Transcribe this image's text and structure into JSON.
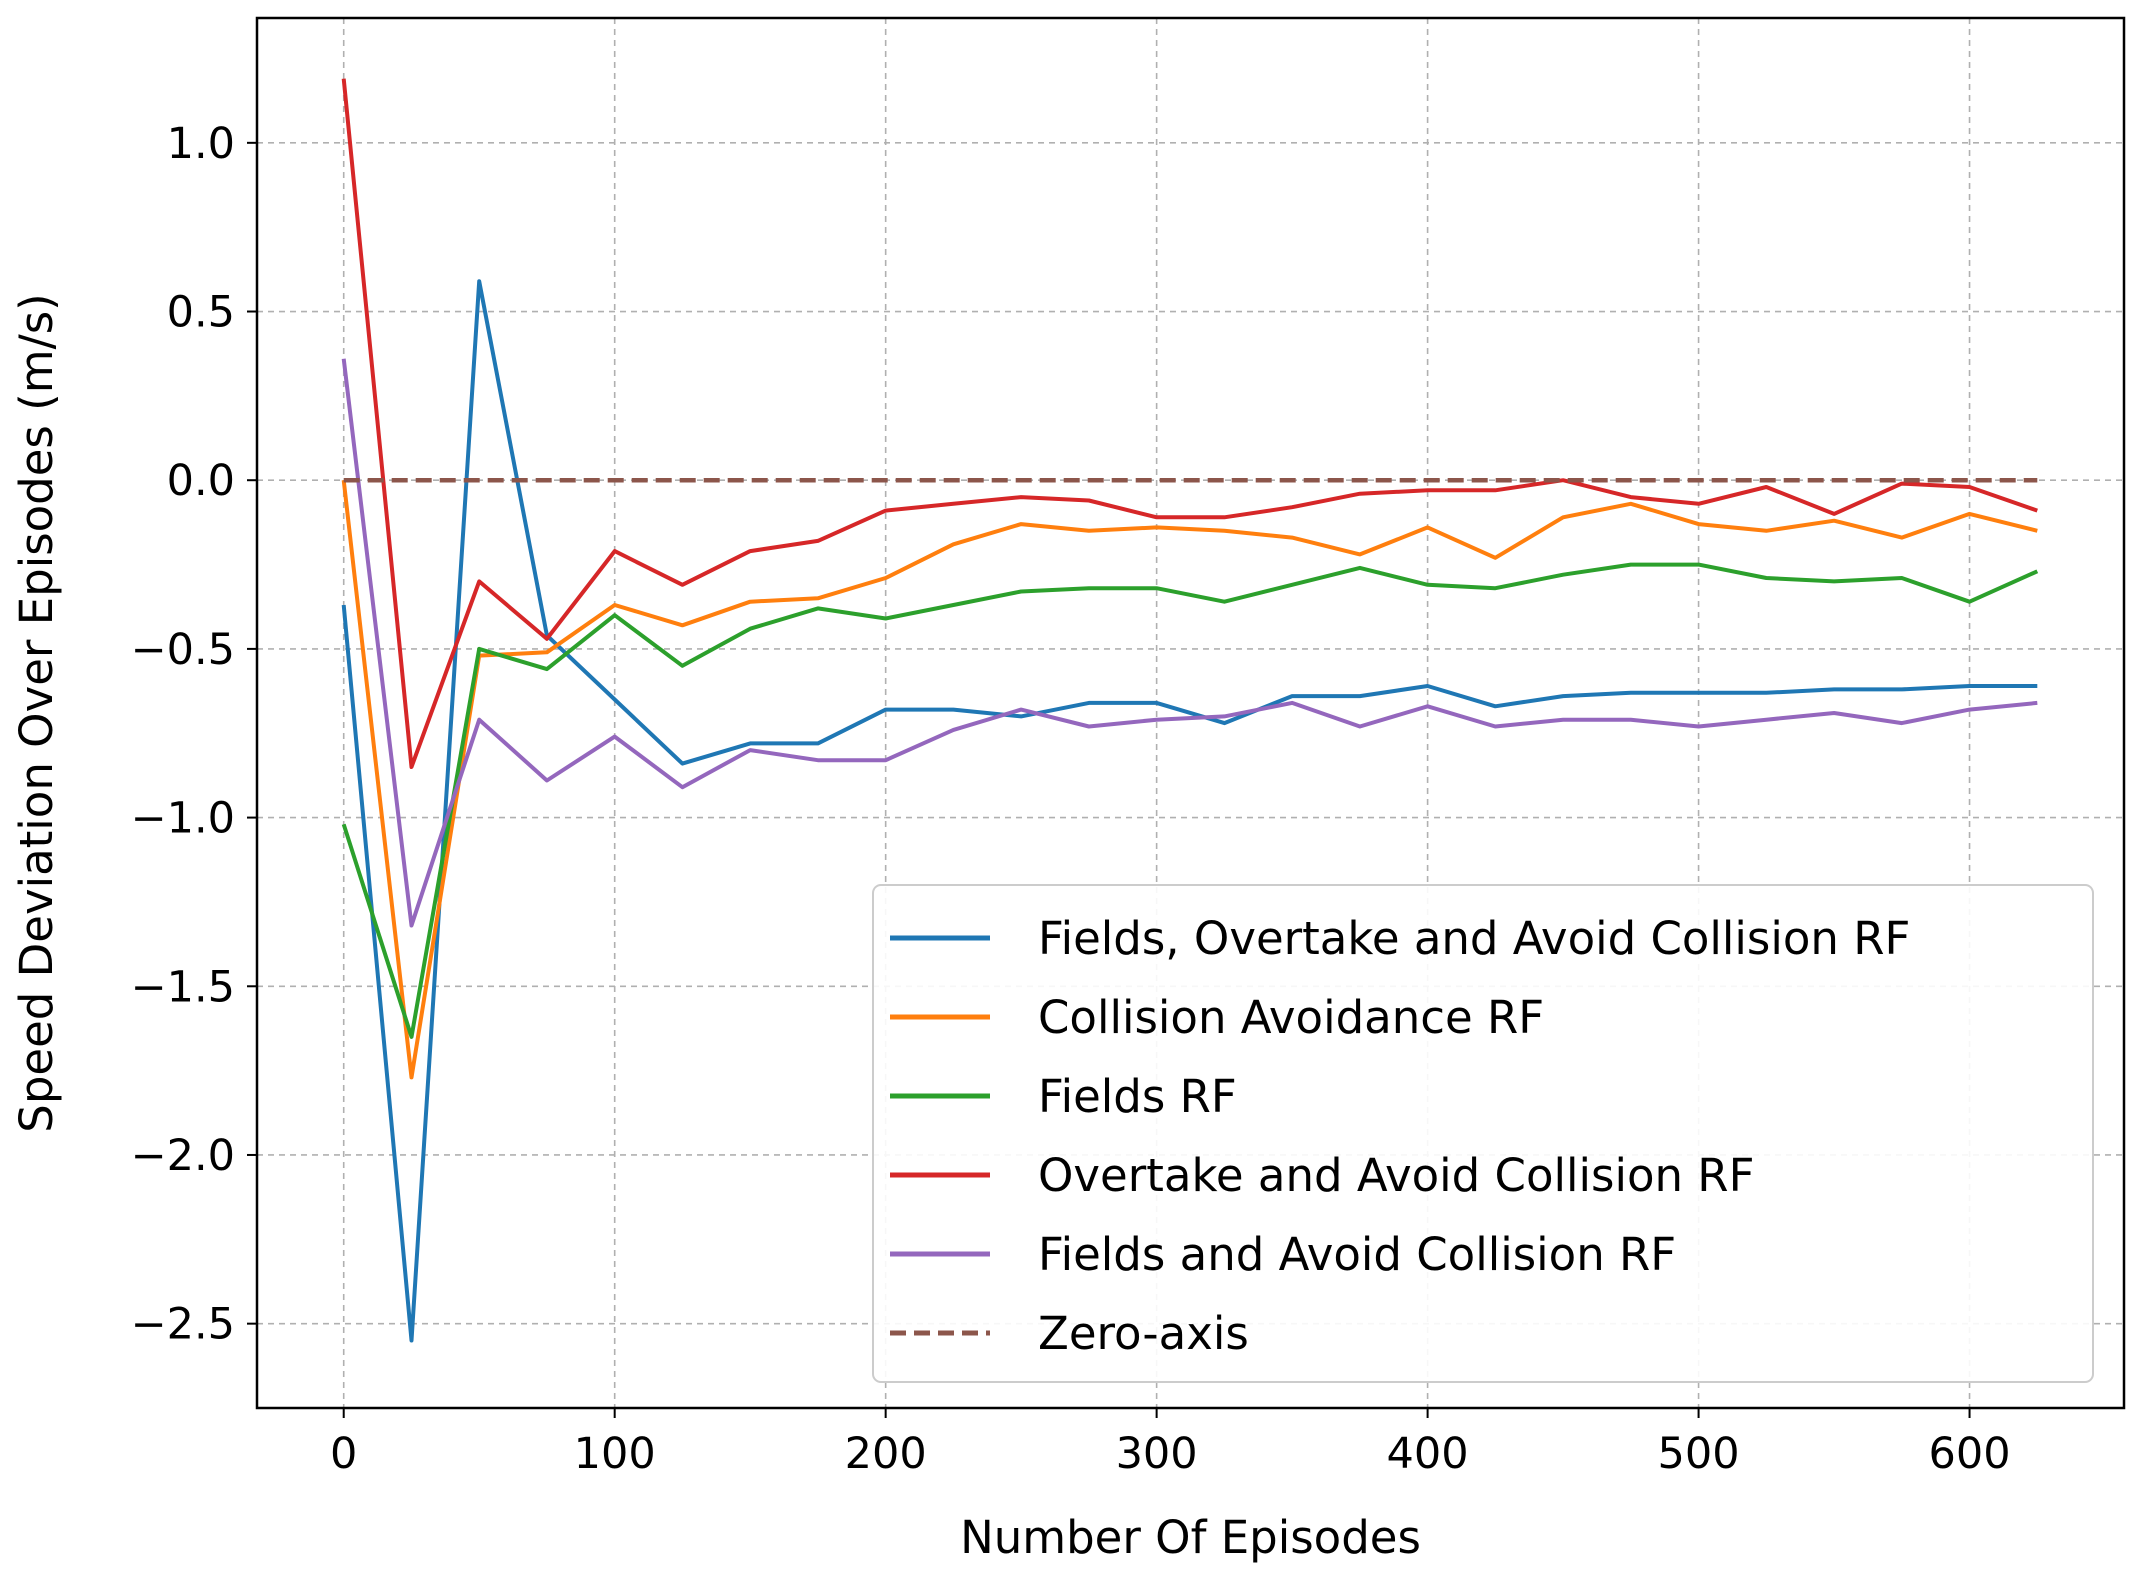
{
  "chart_data": {
    "type": "line",
    "title": "",
    "xlabel": "Number Of Episodes",
    "ylabel": "Speed Deviation Over Episodes (m/s)",
    "xlim": [
      -32,
      657
    ],
    "ylim": [
      -2.75,
      1.37
    ],
    "grid": true,
    "legend_position": "lower-right",
    "x_ticks": [
      0,
      100,
      200,
      300,
      400,
      500,
      600
    ],
    "x_tick_labels": [
      "0",
      "100",
      "200",
      "300",
      "400",
      "500",
      "600"
    ],
    "y_ticks": [
      1.0,
      0.5,
      0.0,
      -0.5,
      -1.0,
      -1.5,
      -2.0,
      -2.5
    ],
    "y_tick_labels": [
      "1.0",
      "0.5",
      "0.0",
      "−0.5",
      "−1.0",
      "−1.5",
      "−2.0",
      "−2.5"
    ],
    "x": [
      0,
      25,
      50,
      75,
      100,
      125,
      150,
      175,
      200,
      225,
      250,
      275,
      300,
      325,
      350,
      375,
      400,
      425,
      450,
      475,
      500,
      525,
      550,
      575,
      600,
      625
    ],
    "series": [
      {
        "name": "Fields, Overtake and Avoid Collision RF",
        "color": "#1f77b4",
        "dashed": false,
        "values": [
          -0.37,
          -2.55,
          0.59,
          -0.46,
          -0.65,
          -0.84,
          -0.78,
          -0.78,
          -0.68,
          -0.68,
          -0.7,
          -0.66,
          -0.66,
          -0.72,
          -0.64,
          -0.64,
          -0.61,
          -0.67,
          -0.64,
          -0.63,
          -0.63,
          -0.63,
          -0.62,
          -0.62,
          -0.61,
          -0.61
        ]
      },
      {
        "name": "Collision Avoidance RF",
        "color": "#ff7f0e",
        "dashed": false,
        "values": [
          0.0,
          -1.77,
          -0.52,
          -0.51,
          -0.37,
          -0.43,
          -0.36,
          -0.35,
          -0.29,
          -0.19,
          -0.13,
          -0.15,
          -0.14,
          -0.15,
          -0.17,
          -0.22,
          -0.14,
          -0.23,
          -0.11,
          -0.07,
          -0.13,
          -0.15,
          -0.12,
          -0.17,
          -0.1,
          -0.15
        ]
      },
      {
        "name": "Fields RF",
        "color": "#2ca02c",
        "dashed": false,
        "values": [
          -1.02,
          -1.65,
          -0.5,
          -0.56,
          -0.4,
          -0.55,
          -0.44,
          -0.38,
          -0.41,
          -0.37,
          -0.33,
          -0.32,
          -0.32,
          -0.36,
          -0.31,
          -0.26,
          -0.31,
          -0.32,
          -0.28,
          -0.25,
          -0.25,
          -0.29,
          -0.3,
          -0.29,
          -0.36,
          -0.27
        ]
      },
      {
        "name": "Overtake and Avoid Collision RF",
        "color": "#d62728",
        "dashed": false,
        "values": [
          1.19,
          -0.85,
          -0.3,
          -0.47,
          -0.21,
          -0.31,
          -0.21,
          -0.18,
          -0.09,
          -0.07,
          -0.05,
          -0.06,
          -0.11,
          -0.11,
          -0.08,
          -0.04,
          -0.03,
          -0.03,
          0.0,
          -0.05,
          -0.07,
          -0.02,
          -0.1,
          -0.01,
          -0.02,
          -0.09
        ]
      },
      {
        "name": "Fields and Avoid Collision RF",
        "color": "#9467bd",
        "dashed": false,
        "values": [
          0.36,
          -1.32,
          -0.71,
          -0.89,
          -0.76,
          -0.91,
          -0.8,
          -0.83,
          -0.83,
          -0.74,
          -0.68,
          -0.73,
          -0.71,
          -0.7,
          -0.66,
          -0.73,
          -0.67,
          -0.73,
          -0.71,
          -0.71,
          -0.73,
          -0.71,
          -0.69,
          -0.72,
          -0.68,
          -0.66
        ]
      },
      {
        "name": "Zero-axis",
        "color": "#8c564b",
        "dashed": true,
        "values": [
          0,
          0,
          0,
          0,
          0,
          0,
          0,
          0,
          0,
          0,
          0,
          0,
          0,
          0,
          0,
          0,
          0,
          0,
          0,
          0,
          0,
          0,
          0,
          0,
          0,
          0
        ]
      }
    ]
  }
}
